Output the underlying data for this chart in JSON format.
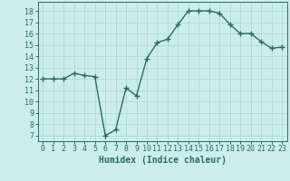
{
  "x": [
    0,
    1,
    2,
    3,
    4,
    5,
    6,
    7,
    8,
    9,
    10,
    11,
    12,
    13,
    14,
    15,
    16,
    17,
    18,
    19,
    20,
    21,
    22,
    23
  ],
  "y": [
    12,
    12,
    12,
    12.5,
    12.3,
    12.2,
    7,
    7.5,
    11.2,
    10.5,
    13.8,
    15.2,
    15.5,
    16.8,
    18,
    18,
    18,
    17.8,
    16.8,
    16,
    16,
    15.3,
    14.7,
    14.8
  ],
  "line_color": "#2e6b5e",
  "marker": "+",
  "markersize": 4,
  "linewidth": 1.0,
  "xlabel": "Humidex (Indice chaleur)",
  "xlim": [
    -0.5,
    23.5
  ],
  "ylim": [
    6.5,
    18.8
  ],
  "yticks": [
    7,
    8,
    9,
    10,
    11,
    12,
    13,
    14,
    15,
    16,
    17,
    18
  ],
  "xticks": [
    0,
    1,
    2,
    3,
    4,
    5,
    6,
    7,
    8,
    9,
    10,
    11,
    12,
    13,
    14,
    15,
    16,
    17,
    18,
    19,
    20,
    21,
    22,
    23
  ],
  "bg_color": "#cceee8",
  "grid_color": "#b0d8d2",
  "tick_label_size": 6,
  "xlabel_size": 7
}
